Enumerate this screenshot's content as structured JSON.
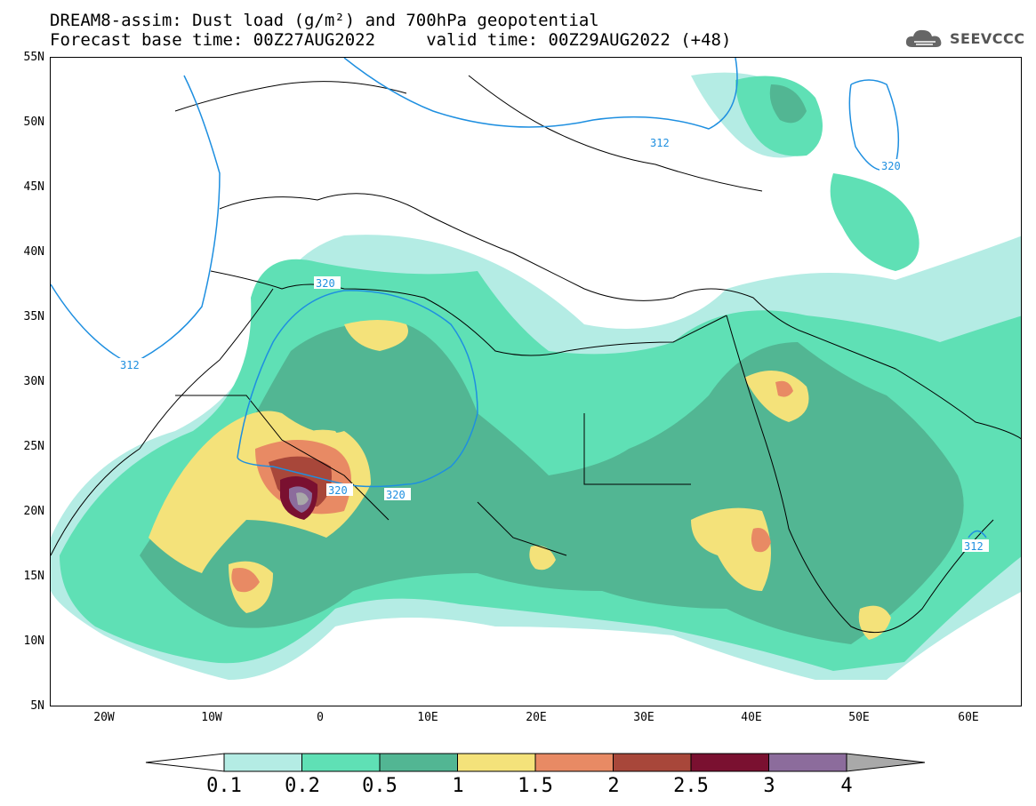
{
  "header": {
    "title_line1": "DREAM8-assim: Dust load (g/m²) and 700hPa geopotential",
    "title_line2": "Forecast base time: 00Z27AUG2022     valid time: 00Z29AUG2022 (+48)"
  },
  "logo": {
    "icon": "cloud-icon",
    "text": "SEEVCCC"
  },
  "axes": {
    "lat_ticks": [
      "55N",
      "50N",
      "45N",
      "40N",
      "35N",
      "30N",
      "25N",
      "20N",
      "15N",
      "10N",
      "5N"
    ],
    "lon_ticks": [
      "20W",
      "10W",
      "0",
      "10E",
      "20E",
      "30E",
      "40E",
      "50E",
      "60E"
    ],
    "lat_range": [
      5,
      55
    ],
    "lon_range": [
      -25,
      65
    ]
  },
  "contours": {
    "labels": [
      "312",
      "320",
      "312",
      "320",
      "320",
      "320",
      "312"
    ]
  },
  "colorbar": {
    "labels": [
      "0.1",
      "0.2",
      "0.5",
      "1",
      "1.5",
      "2",
      "2.5",
      "3",
      "4"
    ],
    "colors": [
      "#ffffff",
      "#b4ece4",
      "#5fe0b5",
      "#52b693",
      "#f4e27a",
      "#e88a64",
      "#a8473a",
      "#7a1030",
      "#8c6c9c",
      "#a9a9a9"
    ]
  }
}
